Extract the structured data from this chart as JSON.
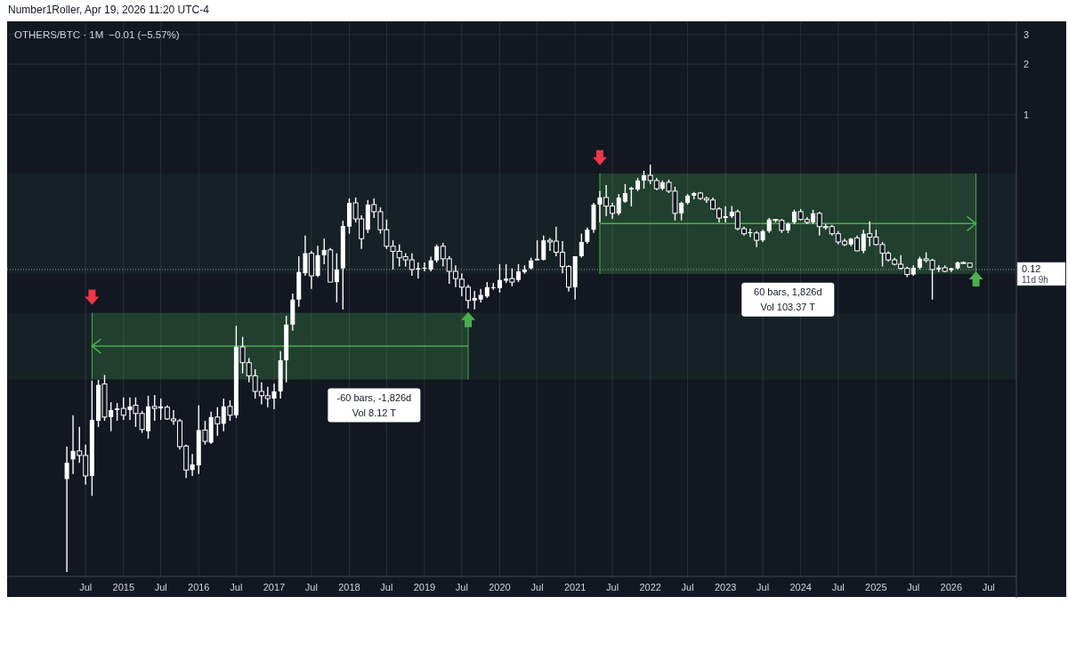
{
  "chart_data": {
    "type": "candlestick",
    "title": "OTHERS/BTC · 1M",
    "subtitle": "−0.01 (−5.57%)",
    "annotations": [
      "Number1Roller, Apr 19, 2026 11:20 UTC-4",
      "11d 9h"
    ],
    "x": [
      "2014-04",
      "2014-05",
      "2014-06",
      "2014-07",
      "2014-08",
      "2014-09",
      "2014-10",
      "2014-11",
      "2014-12",
      "2015-01",
      "2015-02",
      "2015-03",
      "2015-04",
      "2015-05",
      "2015-06",
      "2015-07",
      "2015-08",
      "2015-09",
      "2015-10",
      "2015-11",
      "2015-12",
      "2016-01",
      "2016-02",
      "2016-03",
      "2016-04",
      "2016-05",
      "2016-06",
      "2016-07",
      "2016-08",
      "2016-09",
      "2016-10",
      "2016-11",
      "2016-12",
      "2017-01",
      "2017-02",
      "2017-03",
      "2017-04",
      "2017-05",
      "2017-06",
      "2017-07",
      "2017-08",
      "2017-09",
      "2017-10",
      "2017-11",
      "2017-12",
      "2018-01",
      "2018-02",
      "2018-03",
      "2018-04",
      "2018-05",
      "2018-06",
      "2018-07",
      "2018-08",
      "2018-09",
      "2018-10",
      "2018-11",
      "2018-12",
      "2019-01",
      "2019-02",
      "2019-03",
      "2019-04",
      "2019-05",
      "2019-06",
      "2019-07",
      "2019-08",
      "2019-09",
      "2019-10",
      "2019-11",
      "2019-12",
      "2020-01",
      "2020-02",
      "2020-03",
      "2020-04",
      "2020-05",
      "2020-06",
      "2020-07",
      "2020-08",
      "2020-09",
      "2020-10",
      "2020-11",
      "2020-12",
      "2021-01",
      "2021-02",
      "2021-03",
      "2021-04",
      "2021-05",
      "2021-06",
      "2021-07",
      "2021-08",
      "2021-09",
      "2021-10",
      "2021-11",
      "2021-12",
      "2022-01",
      "2022-02",
      "2022-03",
      "2022-04",
      "2022-05",
      "2022-06",
      "2022-07",
      "2022-08",
      "2022-09",
      "2022-10",
      "2022-11",
      "2022-12",
      "2023-01",
      "2023-02",
      "2023-03",
      "2023-04",
      "2023-05",
      "2023-06",
      "2023-07",
      "2023-08",
      "2023-09",
      "2023-10",
      "2023-11",
      "2023-12",
      "2024-01",
      "2024-02",
      "2024-03",
      "2024-04",
      "2024-05",
      "2024-06",
      "2024-07",
      "2024-08",
      "2024-09",
      "2024-10",
      "2024-11",
      "2024-12",
      "2025-01",
      "2025-02",
      "2025-03",
      "2025-04",
      "2025-05",
      "2025-06",
      "2025-07",
      "2025-08",
      "2025-09",
      "2025-10",
      "2025-11",
      "2025-12",
      "2026-01",
      "2026-02",
      "2026-03",
      "2026-04"
    ],
    "ohlc": [
      [
        0.0068,
        0.0106,
        0.0019,
        0.0085
      ],
      [
        0.0089,
        0.0163,
        0.0073,
        0.01
      ],
      [
        0.01,
        0.0139,
        0.0085,
        0.0094
      ],
      [
        0.0094,
        0.0109,
        0.0063,
        0.0071
      ],
      [
        0.0071,
        0.0262,
        0.0054,
        0.0153
      ],
      [
        0.0151,
        0.0265,
        0.0139,
        0.0247
      ],
      [
        0.025,
        0.0283,
        0.0151,
        0.0159
      ],
      [
        0.0159,
        0.0195,
        0.0131,
        0.0175
      ],
      [
        0.0175,
        0.0193,
        0.0151,
        0.0179
      ],
      [
        0.0179,
        0.0208,
        0.0153,
        0.0163
      ],
      [
        0.0175,
        0.0208,
        0.0153,
        0.0184
      ],
      [
        0.0187,
        0.0208,
        0.0139,
        0.0167
      ],
      [
        0.0167,
        0.0173,
        0.0128,
        0.0134
      ],
      [
        0.0131,
        0.0213,
        0.0118,
        0.0184
      ],
      [
        0.0184,
        0.0215,
        0.0151,
        0.0179
      ],
      [
        0.0179,
        0.0205,
        0.0153,
        0.0184
      ],
      [
        0.0182,
        0.0187,
        0.0153,
        0.0155
      ],
      [
        0.0155,
        0.0175,
        0.0143,
        0.0151
      ],
      [
        0.0151,
        0.0155,
        0.0102,
        0.0106
      ],
      [
        0.0107,
        0.0109,
        0.0069,
        0.0077
      ],
      [
        0.0077,
        0.0096,
        0.0071,
        0.0083
      ],
      [
        0.0082,
        0.0187,
        0.0073,
        0.0133
      ],
      [
        0.0133,
        0.0151,
        0.0109,
        0.0114
      ],
      [
        0.0112,
        0.0171,
        0.011,
        0.0159
      ],
      [
        0.0159,
        0.0182,
        0.0123,
        0.0145
      ],
      [
        0.0145,
        0.0205,
        0.0131,
        0.0184
      ],
      [
        0.0184,
        0.02,
        0.0151,
        0.0163
      ],
      [
        0.0163,
        0.0555,
        0.0157,
        0.0416
      ],
      [
        0.0416,
        0.0477,
        0.0289,
        0.0335
      ],
      [
        0.0335,
        0.0357,
        0.0256,
        0.028
      ],
      [
        0.028,
        0.0306,
        0.0205,
        0.0226
      ],
      [
        0.0226,
        0.0256,
        0.0189,
        0.0213
      ],
      [
        0.0213,
        0.0241,
        0.0182,
        0.0205
      ],
      [
        0.0205,
        0.0251,
        0.0177,
        0.0226
      ],
      [
        0.0226,
        0.0392,
        0.0205,
        0.0346
      ],
      [
        0.0346,
        0.0637,
        0.0256,
        0.0564
      ],
      [
        0.0564,
        0.0864,
        0.0518,
        0.0795
      ],
      [
        0.0795,
        0.144,
        0.072,
        0.116
      ],
      [
        0.114,
        0.191,
        0.11,
        0.15
      ],
      [
        0.15,
        0.155,
        0.0919,
        0.11
      ],
      [
        0.11,
        0.166,
        0.108,
        0.146
      ],
      [
        0.146,
        0.183,
        0.129,
        0.157
      ],
      [
        0.157,
        0.161,
        0.101,
        0.101
      ],
      [
        0.101,
        0.15,
        0.0765,
        0.12
      ],
      [
        0.122,
        0.234,
        0.0694,
        0.218
      ],
      [
        0.216,
        0.318,
        0.196,
        0.299
      ],
      [
        0.299,
        0.322,
        0.229,
        0.24
      ],
      [
        0.24,
        0.252,
        0.159,
        0.183
      ],
      [
        0.207,
        0.311,
        0.198,
        0.292
      ],
      [
        0.292,
        0.318,
        0.243,
        0.265
      ],
      [
        0.265,
        0.281,
        0.196,
        0.207
      ],
      [
        0.207,
        0.238,
        0.159,
        0.165
      ],
      [
        0.165,
        0.179,
        0.12,
        0.154
      ],
      [
        0.154,
        0.169,
        0.125,
        0.141
      ],
      [
        0.143,
        0.15,
        0.125,
        0.137
      ],
      [
        0.137,
        0.15,
        0.11,
        0.12
      ],
      [
        0.12,
        0.132,
        0.106,
        0.122
      ],
      [
        0.122,
        0.132,
        0.117,
        0.123
      ],
      [
        0.12,
        0.143,
        0.117,
        0.136
      ],
      [
        0.136,
        0.169,
        0.132,
        0.165
      ],
      [
        0.165,
        0.173,
        0.125,
        0.139
      ],
      [
        0.139,
        0.144,
        0.0987,
        0.117
      ],
      [
        0.117,
        0.127,
        0.0942,
        0.106
      ],
      [
        0.105,
        0.114,
        0.0832,
        0.0942
      ],
      [
        0.0942,
        0.0976,
        0.0703,
        0.0785
      ],
      [
        0.0785,
        0.0896,
        0.0694,
        0.0813
      ],
      [
        0.0795,
        0.0919,
        0.0765,
        0.0847
      ],
      [
        0.083,
        0.101,
        0.0813,
        0.0942
      ],
      [
        0.093,
        0.0998,
        0.0908,
        0.0942
      ],
      [
        0.093,
        0.129,
        0.0875,
        0.104
      ],
      [
        0.103,
        0.129,
        0.0998,
        0.106
      ],
      [
        0.106,
        0.122,
        0.0953,
        0.101
      ],
      [
        0.104,
        0.129,
        0.101,
        0.117
      ],
      [
        0.116,
        0.127,
        0.113,
        0.12
      ],
      [
        0.122,
        0.141,
        0.12,
        0.136
      ],
      [
        0.136,
        0.179,
        0.136,
        0.139
      ],
      [
        0.137,
        0.191,
        0.136,
        0.179
      ],
      [
        0.179,
        0.185,
        0.155,
        0.175
      ],
      [
        0.177,
        0.216,
        0.144,
        0.152
      ],
      [
        0.152,
        0.177,
        0.114,
        0.125
      ],
      [
        0.125,
        0.127,
        0.0886,
        0.0942
      ],
      [
        0.0942,
        0.144,
        0.0795,
        0.144
      ],
      [
        0.144,
        0.196,
        0.141,
        0.175
      ],
      [
        0.175,
        0.213,
        0.171,
        0.207
      ],
      [
        0.207,
        0.299,
        0.198,
        0.292
      ],
      [
        0.292,
        0.351,
        0.229,
        0.322
      ],
      [
        0.322,
        0.382,
        0.249,
        0.286
      ],
      [
        0.286,
        0.299,
        0.24,
        0.259
      ],
      [
        0.259,
        0.338,
        0.252,
        0.322
      ],
      [
        0.304,
        0.387,
        0.299,
        0.342
      ],
      [
        0.359,
        0.373,
        0.285,
        0.367
      ],
      [
        0.359,
        0.421,
        0.351,
        0.406
      ],
      [
        0.406,
        0.464,
        0.363,
        0.436
      ],
      [
        0.436,
        0.505,
        0.387,
        0.406
      ],
      [
        0.406,
        0.421,
        0.355,
        0.363
      ],
      [
        0.363,
        0.406,
        0.355,
        0.396
      ],
      [
        0.396,
        0.411,
        0.342,
        0.351
      ],
      [
        0.351,
        0.373,
        0.235,
        0.259
      ],
      [
        0.259,
        0.304,
        0.235,
        0.299
      ],
      [
        0.299,
        0.338,
        0.292,
        0.33
      ],
      [
        0.33,
        0.347,
        0.314,
        0.342
      ],
      [
        0.342,
        0.347,
        0.311,
        0.318
      ],
      [
        0.318,
        0.326,
        0.299,
        0.311
      ],
      [
        0.311,
        0.322,
        0.272,
        0.275
      ],
      [
        0.275,
        0.281,
        0.229,
        0.243
      ],
      [
        0.243,
        0.286,
        0.229,
        0.249
      ],
      [
        0.249,
        0.286,
        0.243,
        0.265
      ],
      [
        0.265,
        0.272,
        0.205,
        0.21
      ],
      [
        0.21,
        0.216,
        0.191,
        0.196
      ],
      [
        0.198,
        0.21,
        0.187,
        0.2
      ],
      [
        0.198,
        0.203,
        0.163,
        0.179
      ],
      [
        0.179,
        0.207,
        0.175,
        0.203
      ],
      [
        0.203,
        0.243,
        0.198,
        0.238
      ],
      [
        0.238,
        0.24,
        0.229,
        0.235
      ],
      [
        0.235,
        0.24,
        0.198,
        0.205
      ],
      [
        0.205,
        0.229,
        0.198,
        0.224
      ],
      [
        0.229,
        0.272,
        0.224,
        0.265
      ],
      [
        0.265,
        0.275,
        0.235,
        0.238
      ],
      [
        0.238,
        0.246,
        0.224,
        0.229
      ],
      [
        0.229,
        0.272,
        0.224,
        0.259
      ],
      [
        0.259,
        0.265,
        0.191,
        0.216
      ],
      [
        0.216,
        0.224,
        0.207,
        0.213
      ],
      [
        0.216,
        0.221,
        0.191,
        0.196
      ],
      [
        0.196,
        0.203,
        0.169,
        0.175
      ],
      [
        0.177,
        0.183,
        0.165,
        0.169
      ],
      [
        0.169,
        0.185,
        0.165,
        0.183
      ],
      [
        0.185,
        0.191,
        0.154,
        0.155
      ],
      [
        0.155,
        0.207,
        0.15,
        0.196
      ],
      [
        0.196,
        0.232,
        0.165,
        0.187
      ],
      [
        0.187,
        0.207,
        0.167,
        0.169
      ],
      [
        0.169,
        0.175,
        0.125,
        0.15
      ],
      [
        0.15,
        0.154,
        0.134,
        0.137
      ],
      [
        0.137,
        0.141,
        0.127,
        0.129
      ],
      [
        0.129,
        0.146,
        0.12,
        0.122
      ],
      [
        0.122,
        0.125,
        0.108,
        0.112
      ],
      [
        0.112,
        0.127,
        0.11,
        0.123
      ],
      [
        0.123,
        0.143,
        0.12,
        0.139
      ],
      [
        0.139,
        0.152,
        0.132,
        0.136
      ],
      [
        0.136,
        0.139,
        0.0795,
        0.12
      ],
      [
        0.12,
        0.127,
        0.116,
        0.123
      ],
      [
        0.123,
        0.127,
        0.116,
        0.117
      ],
      [
        0.119,
        0.123,
        0.116,
        0.122
      ],
      [
        0.122,
        0.134,
        0.12,
        0.132
      ],
      [
        0.132,
        0.134,
        0.129,
        0.131
      ],
      [
        0.131,
        0.132,
        0.123,
        0.124
      ]
    ],
    "color": "#ffffff",
    "log": true,
    "grid": true,
    "xlim": [
      "2013-06-15",
      "2026-11-13"
    ],
    "xticks": [
      {
        "value": "2014-07",
        "label": "Jul"
      },
      {
        "value": "2015-01",
        "label": "2015"
      },
      {
        "value": "2015-07",
        "label": "Jul"
      },
      {
        "value": "2016-01",
        "label": "2016"
      },
      {
        "value": "2016-07",
        "label": "Jul"
      },
      {
        "value": "2017-01",
        "label": "2017"
      },
      {
        "value": "2017-07",
        "label": "Jul"
      },
      {
        "value": "2018-01",
        "label": "2018"
      },
      {
        "value": "2018-07",
        "label": "Jul"
      },
      {
        "value": "2019-01",
        "label": "2019"
      },
      {
        "value": "2019-07",
        "label": "Jul"
      },
      {
        "value": "2020-01",
        "label": "2020"
      },
      {
        "value": "2020-07",
        "label": "Jul"
      },
      {
        "value": "2021-01",
        "label": "2021"
      },
      {
        "value": "2021-07",
        "label": "Jul"
      },
      {
        "value": "2022-01",
        "label": "2022"
      },
      {
        "value": "2022-07",
        "label": "Jul"
      },
      {
        "value": "2023-01",
        "label": "2023"
      },
      {
        "value": "2023-07",
        "label": "Jul"
      },
      {
        "value": "2024-01",
        "label": "2024"
      },
      {
        "value": "2024-07",
        "label": "Jul"
      },
      {
        "value": "2025-01",
        "label": "2025"
      },
      {
        "value": "2025-07",
        "label": "Jul"
      },
      {
        "value": "2026-01",
        "label": "2026"
      },
      {
        "value": "2026-07",
        "label": "Jul"
      }
    ],
    "ylim": [
      0.00179,
      3.55
    ],
    "yticks": [
      1,
      2,
      3
    ],
    "ref_lines": [
      {
        "axis": "y",
        "value": 0.12,
        "label": "0.12",
        "line_style": "dotted",
        "color": "#9598a1"
      }
    ],
    "bands": [
      {
        "axis": "x",
        "from": "2019-08",
        "to": "2014-08",
        "label": "-60 bars, -1,826d\nVol 8.12 T",
        "color": "#4caf50"
      },
      {
        "axis": "y",
        "from": 0.0266,
        "to": 0.0663,
        "color": "#4caf50"
      },
      {
        "axis": "x",
        "from": "2021-05",
        "to": "2026-05",
        "label": "60 bars, 1,826d\nVol 103.37 T",
        "color": "#4caf50"
      },
      {
        "axis": "y",
        "from": 0.113,
        "to": 0.448,
        "color": "#4caf50"
      }
    ]
  }
}
